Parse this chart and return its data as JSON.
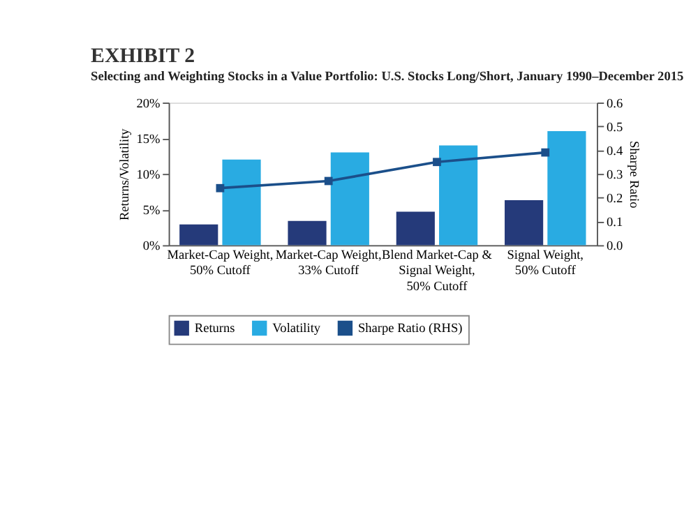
{
  "chart_data": {
    "type": "bar",
    "title": "EXHIBIT 2",
    "subtitle": "Selecting and Weighting Stocks in a Value Portfolio: U.S. Stocks Long/Short, January 1990–December 2015",
    "categories": [
      "Market-Cap Weight,\n50% Cutoff",
      "Market-Cap Weight,\n33% Cutoff",
      "Blend Market-Cap &\nSignal Weight,\n50% Cutoff",
      "Signal Weight,\n50% Cutoff"
    ],
    "ylabel": "Returns/Volatility",
    "y2label": "Sharpe Ratio",
    "series": [
      {
        "name": "Returns",
        "color": "#253a7a",
        "values": [
          2.9,
          3.4,
          4.7,
          6.3
        ]
      },
      {
        "name": "Volatility",
        "color": "#29abe2",
        "values": [
          12.0,
          13.0,
          14.0,
          16.0
        ]
      },
      {
        "name": "Sharpe Ratio (RHS)",
        "type": "line",
        "axis": "y2",
        "color": "#1b4f8a",
        "marker": "square",
        "values": [
          0.24,
          0.27,
          0.35,
          0.39
        ]
      }
    ],
    "ylim": [
      0,
      20
    ],
    "yticks": [
      {
        "value": 0,
        "label": "0%"
      },
      {
        "value": 5,
        "label": "5%"
      },
      {
        "value": 10,
        "label": "10%"
      },
      {
        "value": 15,
        "label": "15%"
      },
      {
        "value": 20,
        "label": "20%"
      }
    ],
    "y2lim": [
      0,
      0.6
    ],
    "y2ticks": [
      {
        "value": 0,
        "label": "0.0"
      },
      {
        "value": 0.1,
        "label": "0.1"
      },
      {
        "value": 0.2,
        "label": "0.2"
      },
      {
        "value": 0.3,
        "label": "0.3"
      },
      {
        "value": 0.4,
        "label": "0.4"
      },
      {
        "value": 0.5,
        "label": "0.5"
      },
      {
        "value": 0.6,
        "label": "0.6"
      }
    ],
    "grid": false,
    "legend": "bottom"
  }
}
